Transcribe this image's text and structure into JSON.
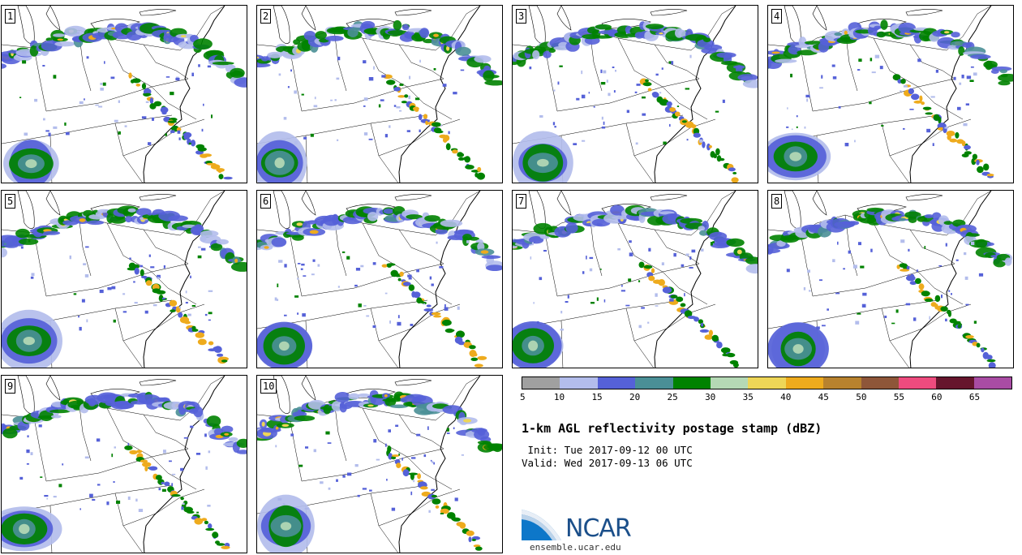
{
  "panels": [
    {
      "label": "1"
    },
    {
      "label": "2"
    },
    {
      "label": "3"
    },
    {
      "label": "4"
    },
    {
      "label": "5"
    },
    {
      "label": "6"
    },
    {
      "label": "7"
    },
    {
      "label": "8"
    },
    {
      "label": "9"
    },
    {
      "label": "10"
    }
  ],
  "colorbar": {
    "colors": [
      "#a0a0a0",
      "#b3bdec",
      "#5561d8",
      "#4a8f96",
      "#008200",
      "#b5d9b5",
      "#eed657",
      "#eeab1d",
      "#b8822e",
      "#8e5639",
      "#ee4b7e",
      "#66152d",
      "#a94ca4"
    ],
    "tick_labels": [
      "5",
      "10",
      "15",
      "20",
      "25",
      "30",
      "35",
      "40",
      "45",
      "50",
      "55",
      "60",
      "65"
    ]
  },
  "title": "1-km AGL reflectivity postage stamp (dBZ)",
  "init": " Init: Tue 2017-09-12 00 UTC",
  "valid": "Valid: Wed 2017-09-13 06 UTC",
  "logo": {
    "name": "NCAR",
    "url": "ensemble.ucar.edu",
    "icon": "ncar-swoosh-icon"
  }
}
